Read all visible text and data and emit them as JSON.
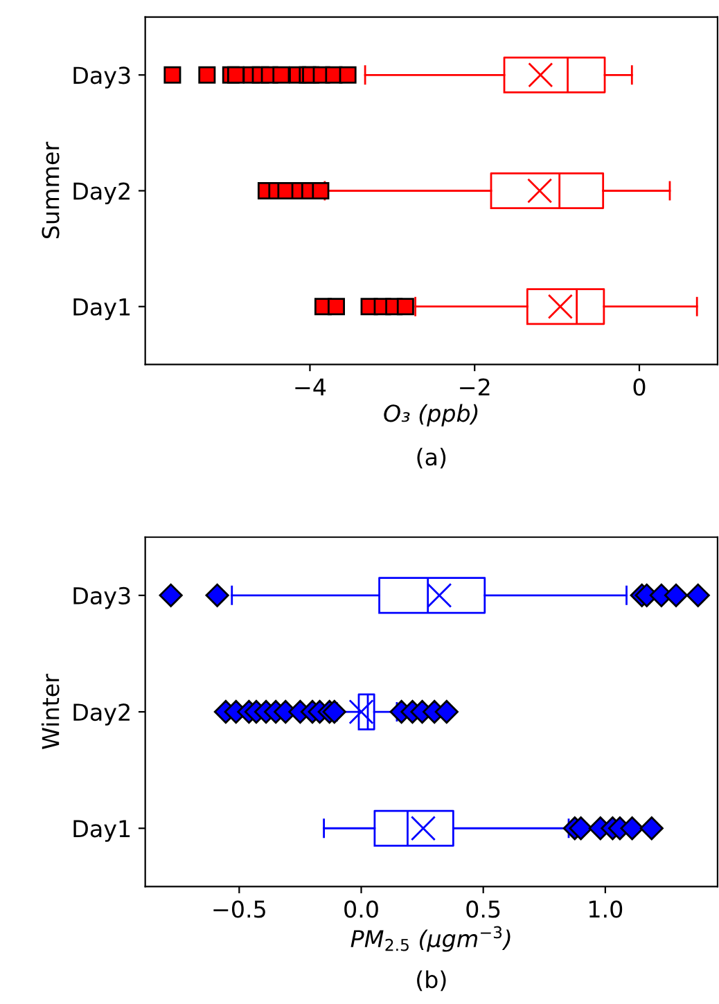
{
  "chart_data": [
    {
      "type": "box",
      "orientation": "horizontal",
      "ylabel": "Summer",
      "xlabel": "O₃ (ppb)",
      "annotations": [
        "(a)"
      ],
      "categories": [
        "Day3",
        "Day2",
        "Day1"
      ],
      "color": "#ff0000",
      "marker": "square",
      "xlim": [
        -6.0,
        0.95
      ],
      "xticks": [
        {
          "value": -4,
          "label": "−4"
        },
        {
          "value": -2,
          "label": "−2"
        },
        {
          "value": 0,
          "label": "0"
        }
      ],
      "legend": false,
      "grid": false,
      "boxes": [
        {
          "low": -3.33,
          "q1": -1.64,
          "median": -0.87,
          "q3": -0.42,
          "high": -0.09,
          "mean": -1.2,
          "outliers": [
            -5.67,
            -5.25,
            -4.96,
            -4.9,
            -4.71,
            -4.6,
            -4.49,
            -4.35,
            -4.15,
            -4.03,
            -3.99,
            -3.86,
            -3.71,
            -3.54
          ]
        },
        {
          "low": -3.82,
          "q1": -1.8,
          "median": -0.97,
          "q3": -0.44,
          "high": 0.37,
          "mean": -1.21,
          "outliers": [
            -4.53,
            -4.4,
            -4.29,
            -4.12,
            -4.0,
            -3.87
          ]
        },
        {
          "low": -2.72,
          "q1": -1.36,
          "median": -0.76,
          "q3": -0.43,
          "high": 0.7,
          "mean": -0.96,
          "outliers": [
            -3.84,
            -3.68,
            -3.28,
            -3.12,
            -2.98,
            -2.84
          ]
        }
      ]
    },
    {
      "type": "box",
      "orientation": "horizontal",
      "ylabel": "Winter",
      "xlabel": "PM$_{2.5}$ (μgm$^{−3}$)",
      "annotations": [
        "(b)"
      ],
      "categories": [
        "Day3",
        "Day2",
        "Day1"
      ],
      "color": "#0000ff",
      "marker": "diamond",
      "xlim": [
        -0.885,
        1.46
      ],
      "xticks": [
        {
          "value": -0.5,
          "label": "−0.5"
        },
        {
          "value": 0,
          "label": "0.0"
        },
        {
          "value": 0.5,
          "label": "0.5"
        },
        {
          "value": 1,
          "label": "1.0"
        }
      ],
      "legend": false,
      "grid": false,
      "boxes": [
        {
          "low": -0.53,
          "q1": 0.074,
          "median": 0.273,
          "q3": 0.506,
          "high": 1.087,
          "mean": 0.32,
          "outliers": [
            -0.78,
            -0.59,
            1.15,
            1.17,
            1.23,
            1.29,
            1.38
          ]
        },
        {
          "low": -0.1,
          "q1": -0.01,
          "median": 0.027,
          "q3": 0.053,
          "high": 0.146,
          "mean": 0.0,
          "outliers": [
            -0.555,
            -0.513,
            -0.46,
            -0.43,
            -0.39,
            -0.35,
            -0.31,
            -0.25,
            -0.2,
            -0.17,
            -0.13,
            -0.11,
            0.165,
            0.21,
            0.25,
            0.3,
            0.35
          ]
        },
        {
          "low": -0.153,
          "q1": 0.055,
          "median": 0.19,
          "q3": 0.377,
          "high": 0.85,
          "mean": 0.254,
          "outliers": [
            0.875,
            0.9,
            0.98,
            1.03,
            1.06,
            1.11,
            1.19
          ]
        }
      ]
    }
  ]
}
